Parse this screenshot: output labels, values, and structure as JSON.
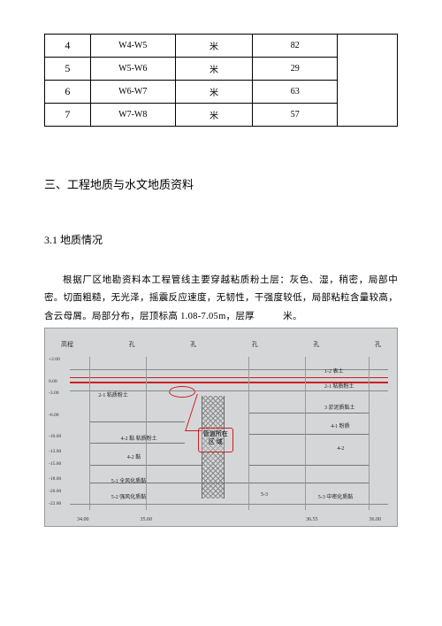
{
  "table": {
    "rows": [
      {
        "idx": "4",
        "seg": "W4-W5",
        "unit": "米",
        "val": "82"
      },
      {
        "idx": "5",
        "seg": "W5-W6",
        "unit": "米",
        "val": "29"
      },
      {
        "idx": "6",
        "seg": "W6-W7",
        "unit": "米",
        "val": "63"
      },
      {
        "idx": "7",
        "seg": "W7-W8",
        "unit": "米",
        "val": "57"
      }
    ]
  },
  "headings": {
    "h3": "三、工程地质与水文地质资料",
    "h31": "3.1 地质情况"
  },
  "paragraph": {
    "text_part1": "根据厂区地勘资料本工程管线主要穿越粘质粉土层：灰色、湿，稍密，局部中密。切面粗糙，无光泽，摇震反应速度，无韧性，干强度较低，局部粘粒含量较高，含云母屑。局部分布，层顶标高 ",
    "elev_range": "1.08-7.05m",
    "text_part2": "，层厚",
    "text_part3": "米。"
  },
  "figure": {
    "top_axis": [
      "高程",
      "孔",
      "孔",
      "孔",
      "孔",
      "孔"
    ],
    "elevation_ticks": [
      {
        "t": "+2.00",
        "top_pct": 0
      },
      {
        "t": "0.00",
        "top_pct": 14
      },
      {
        "t": "-3.00",
        "top_pct": 22
      },
      {
        "t": "-6.00",
        "top_pct": 36
      },
      {
        "t": "-10.00",
        "top_pct": 50
      },
      {
        "t": "-13.00",
        "top_pct": 60
      },
      {
        "t": "-15.00",
        "top_pct": 68
      },
      {
        "t": "-18.00",
        "top_pct": 78
      },
      {
        "t": "-20.00",
        "top_pct": 86
      },
      {
        "t": "-22.00",
        "top_pct": 94
      }
    ],
    "hlines": [
      {
        "top_pct": 8,
        "red": false
      },
      {
        "top_pct": 13,
        "red": true
      },
      {
        "top_pct": 16,
        "red": true
      },
      {
        "top_pct": 22,
        "red": false
      },
      {
        "top_pct": 96,
        "red": false
      }
    ],
    "strat_labels": [
      {
        "t": "1-2 表土",
        "left_pct": 80,
        "top_pct": 6
      },
      {
        "t": "2-1 粘质粉土",
        "left_pct": 80,
        "top_pct": 16
      },
      {
        "t": "3 淤泥质黏土",
        "left_pct": 80,
        "top_pct": 30
      },
      {
        "t": "4-1 粉质",
        "left_pct": 82,
        "top_pct": 42
      },
      {
        "t": "4-2",
        "left_pct": 84,
        "top_pct": 58
      },
      {
        "t": "5-3 中密化质黏",
        "left_pct": 78,
        "top_pct": 88
      },
      {
        "t": "2-1 粘质粉土",
        "left_pct": 9,
        "top_pct": 22
      },
      {
        "t": "4-2 黏 粘质粉土",
        "left_pct": 16,
        "top_pct": 50
      },
      {
        "t": "4-2 黏",
        "left_pct": 18,
        "top_pct": 62
      },
      {
        "t": "5-1 全风化质黏",
        "left_pct": 13,
        "top_pct": 78
      },
      {
        "t": "5-2 强风化质黏",
        "left_pct": 13,
        "top_pct": 88
      },
      {
        "t": "5-3",
        "left_pct": 60,
        "top_pct": 88
      }
    ],
    "short_hlines": [
      {
        "left_pct": 6,
        "width_pct": 30,
        "top_pct": 42
      },
      {
        "left_pct": 6,
        "width_pct": 30,
        "top_pct": 56
      },
      {
        "left_pct": 6,
        "width_pct": 36,
        "top_pct": 70
      },
      {
        "left_pct": 6,
        "width_pct": 88,
        "top_pct": 82
      },
      {
        "left_pct": 56,
        "width_pct": 38,
        "top_pct": 36
      },
      {
        "left_pct": 56,
        "width_pct": 38,
        "top_pct": 50
      },
      {
        "left_pct": 56,
        "width_pct": 38,
        "top_pct": 70
      }
    ],
    "vlines": [
      {
        "left_pct": 6,
        "dashed": false
      },
      {
        "left_pct": 24,
        "dashed": false
      },
      {
        "left_pct": 56,
        "dashed": false
      },
      {
        "left_pct": 74,
        "dashed": false
      },
      {
        "left_pct": 94,
        "dashed": false
      }
    ],
    "callout": {
      "line1": "管道所在",
      "line2": "区 域"
    },
    "bottom_axis": [
      "34.00",
      "35.60",
      "",
      "",
      "36.55",
      "36.00"
    ],
    "colors": {
      "bg": "#d5d6d8",
      "red": "#cc2020",
      "line": "#888888"
    }
  }
}
